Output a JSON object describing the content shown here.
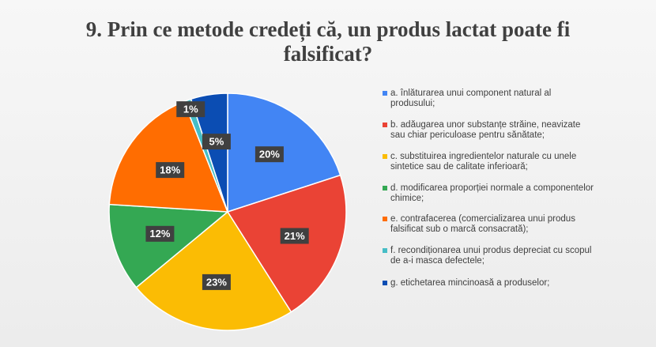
{
  "chart_data": {
    "type": "pie",
    "title": "9. Prin ce metode credeți că, un produs lactat poate fi falsificat?",
    "categories": [
      "a. înlăturarea unui component natural al produsului;",
      "b. adăugarea unor substanțe străine, neavizate sau chiar periculoase pentru sănătate;",
      "c. substituirea ingredientelor naturale cu unele sintetice sau de calitate inferioară;",
      "d. modificarea proporției normale a componentelor chimice;",
      "e. contrafacerea (comercializarea unui produs falsificat sub o marcă consacrată);",
      "f. recondiționarea unui produs depreciat cu scopul de a-i masca defectele;",
      "g. etichetarea mincinoasă a produselor;"
    ],
    "values": [
      20,
      21,
      23,
      12,
      18,
      1,
      5
    ],
    "value_labels": [
      "20%",
      "21%",
      "23%",
      "12%",
      "18%",
      "1%",
      "5%"
    ],
    "colors": [
      "#4285f4",
      "#ea4335",
      "#fbbc04",
      "#34a853",
      "#ff6d01",
      "#46bdc6",
      "#0b4db3"
    ],
    "legend": "right"
  }
}
